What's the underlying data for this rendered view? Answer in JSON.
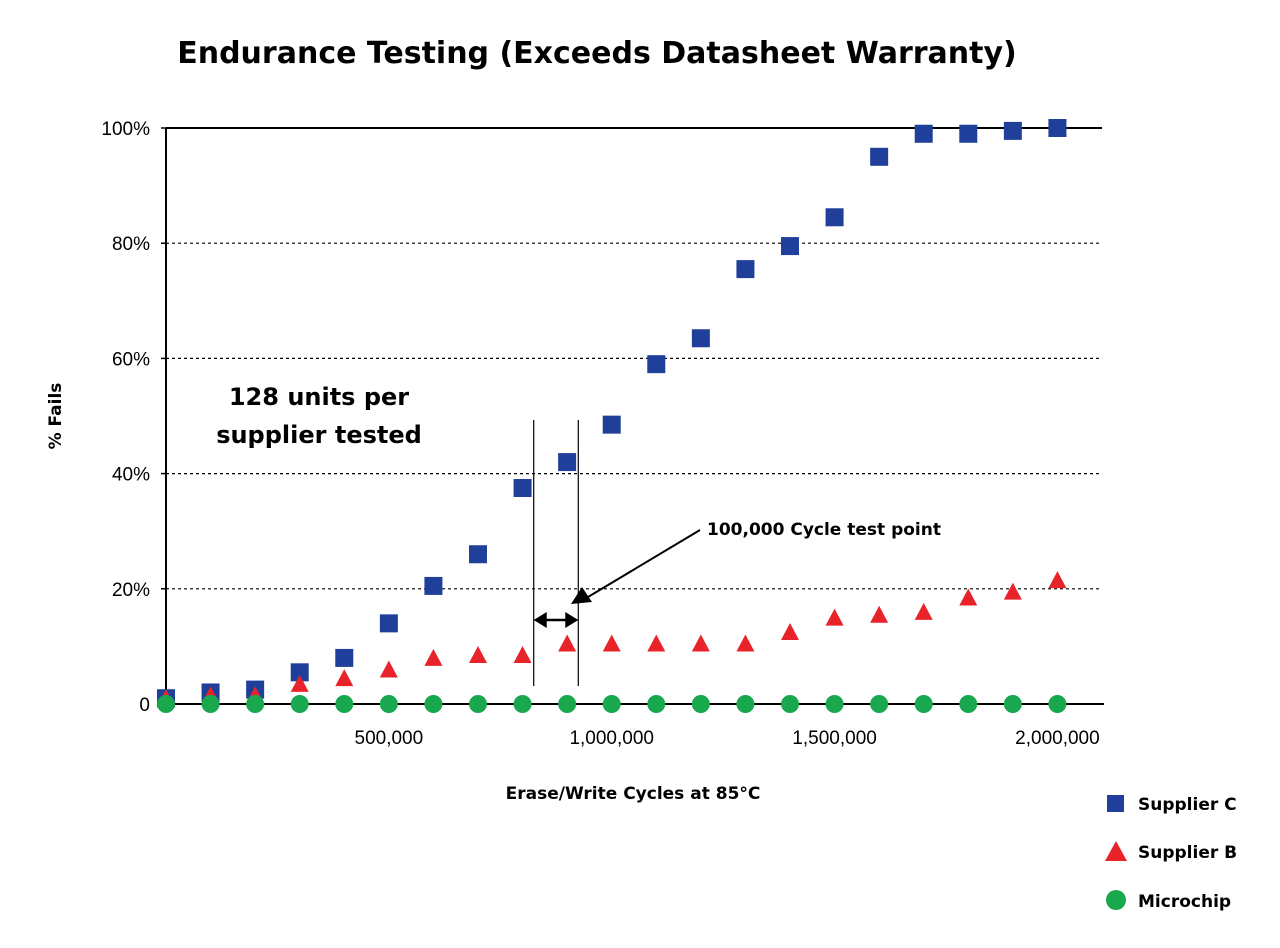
{
  "chart_data": {
    "type": "scatter",
    "title": "Endurance Testing (Exceeds Datasheet Warranty)",
    "xlabel": "Erase/Write Cycles at 85°C",
    "ylabel": "% Fails",
    "xlim": [
      0,
      2100000
    ],
    "ylim": [
      0,
      100
    ],
    "x_ticks": [
      {
        "value": 500000,
        "label": "500,000"
      },
      {
        "value": 1000000,
        "label": "1,000,000"
      },
      {
        "value": 1500000,
        "label": "1,500,000"
      },
      {
        "value": 2000000,
        "label": "2,000,000"
      }
    ],
    "y_ticks": [
      {
        "value": 0,
        "label": "0"
      },
      {
        "value": 20,
        "label": "20%"
      },
      {
        "value": 40,
        "label": "40%"
      },
      {
        "value": 60,
        "label": "60%"
      },
      {
        "value": 80,
        "label": "80%"
      },
      {
        "value": 100,
        "label": "100%"
      }
    ],
    "grid": "horizontal dotted",
    "legend_position": "bottom-right",
    "series": [
      {
        "name": "Supplier C",
        "marker": "square",
        "color": "#1f3f9a",
        "x": [
          0,
          100000,
          200000,
          300000,
          400000,
          500000,
          600000,
          700000,
          800000,
          900000,
          1000000,
          1100000,
          1200000,
          1300000,
          1400000,
          1500000,
          1600000,
          1700000,
          1800000,
          1900000,
          2000000
        ],
        "y": [
          1,
          2,
          2.5,
          5.5,
          8,
          14,
          20.5,
          26,
          37.5,
          42,
          48.5,
          59,
          63.5,
          75.5,
          79.5,
          84.5,
          95,
          99,
          99,
          99.5,
          100
        ]
      },
      {
        "name": "Supplier B",
        "marker": "triangle",
        "color": "#e8242a",
        "x": [
          0,
          100000,
          200000,
          300000,
          400000,
          500000,
          600000,
          700000,
          800000,
          900000,
          1000000,
          1100000,
          1200000,
          1300000,
          1400000,
          1500000,
          1600000,
          1700000,
          1800000,
          1900000,
          2000000
        ],
        "y": [
          1,
          1.5,
          1.5,
          3.5,
          4.5,
          6,
          8,
          8.5,
          8.5,
          10.5,
          10.5,
          10.5,
          10.5,
          10.5,
          12.5,
          15,
          15.5,
          16,
          18.5,
          19.5,
          21.5
        ]
      },
      {
        "name": "Microchip",
        "marker": "circle",
        "color": "#19a84d",
        "x": [
          0,
          100000,
          200000,
          300000,
          400000,
          500000,
          600000,
          700000,
          800000,
          900000,
          1000000,
          1100000,
          1200000,
          1300000,
          1400000,
          1500000,
          1600000,
          1700000,
          1800000,
          1900000,
          2000000
        ],
        "y": [
          0,
          0,
          0,
          0,
          0,
          0,
          0,
          0,
          0,
          0,
          0,
          0,
          0,
          0,
          0,
          0,
          0,
          0,
          0,
          0,
          0
        ]
      }
    ],
    "annotations": {
      "units_note": [
        "128 units per",
        "supplier tested"
      ],
      "test_point_label": "100,000 Cycle test point",
      "test_point_bounds": [
        825000,
        925000
      ]
    }
  }
}
